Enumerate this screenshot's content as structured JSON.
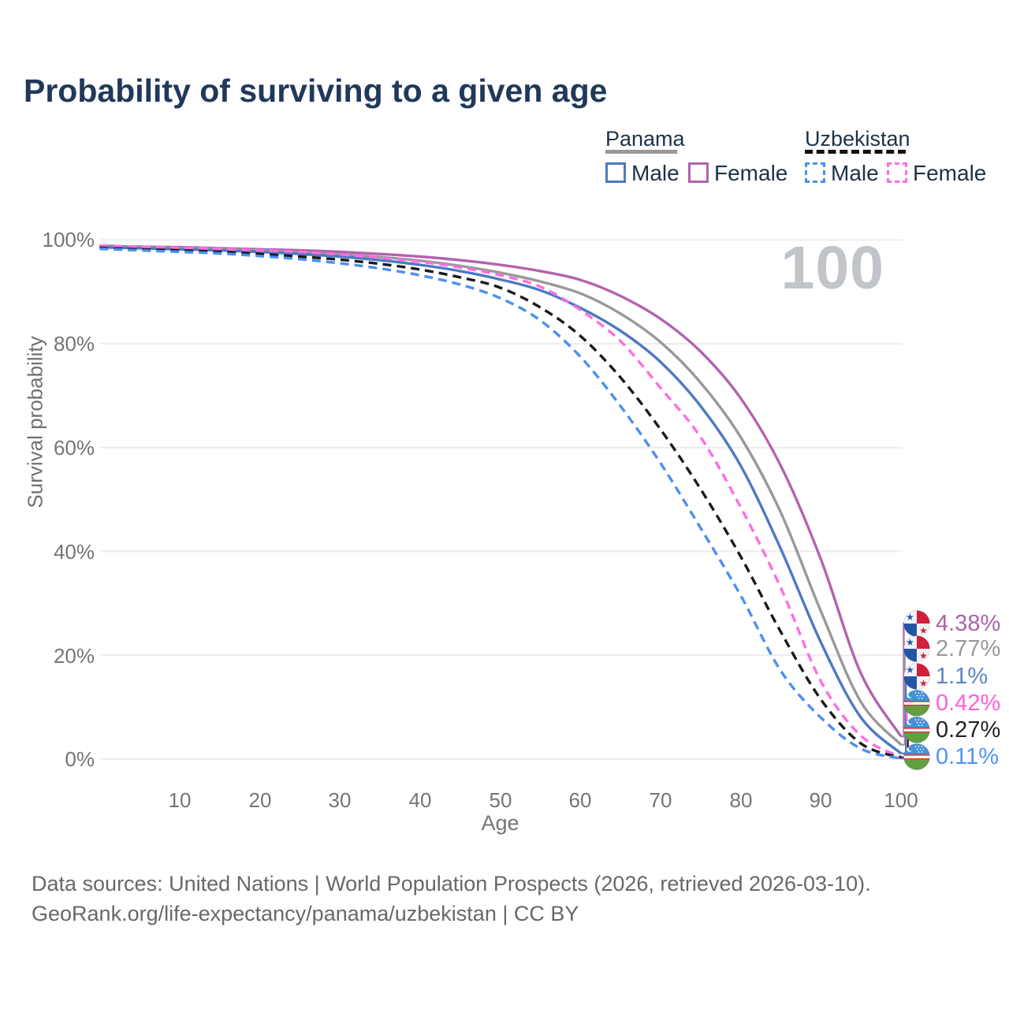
{
  "title": "Probability of surviving to a given age",
  "age_indicator": "100",
  "legend": {
    "groups": [
      {
        "country": "Panama",
        "line_style": "solid",
        "line_color": "#999999",
        "entries": [
          {
            "label": "Male",
            "color": "#4d79c2",
            "style": "solid"
          },
          {
            "label": "Female",
            "color": "#b263ae",
            "style": "solid"
          }
        ]
      },
      {
        "country": "Uzbekistan",
        "line_style": "dashed",
        "line_color": "#111111",
        "entries": [
          {
            "label": "Male",
            "color": "#4a90f0",
            "style": "dashed"
          },
          {
            "label": "Female",
            "color": "#ff6ee0",
            "style": "dashed"
          }
        ]
      }
    ]
  },
  "chart_data": {
    "type": "line",
    "xlabel": "Age",
    "ylabel": "Survival probability",
    "xlim": [
      0,
      100
    ],
    "ylim": [
      0,
      100
    ],
    "grid": "horizontal",
    "x": [
      0,
      5,
      10,
      15,
      20,
      25,
      30,
      35,
      40,
      45,
      50,
      55,
      60,
      65,
      70,
      75,
      80,
      85,
      90,
      95,
      100
    ],
    "xtick_labels": [
      "10",
      "20",
      "30",
      "40",
      "50",
      "60",
      "70",
      "80",
      "90",
      "100"
    ],
    "xticks": [
      10,
      20,
      30,
      40,
      50,
      60,
      70,
      80,
      90,
      100
    ],
    "ytick_labels": [
      "100%",
      "80%",
      "60%",
      "40%",
      "20%",
      "0%"
    ],
    "yticks": [
      0,
      20,
      40,
      60,
      80,
      100
    ],
    "series": [
      {
        "id": "panama-female",
        "name": "Panama Female",
        "country": "Panama",
        "sex": "female",
        "line_style": "solid",
        "color": "#b263ae",
        "end_label": "4.38%",
        "values": [
          98.9,
          98.7,
          98.6,
          98.4,
          98.2,
          98.0,
          97.7,
          97.3,
          96.8,
          96.1,
          95.2,
          94.0,
          92.3,
          89.2,
          84.8,
          78.5,
          69.5,
          56.5,
          38.5,
          16.5,
          4.38
        ]
      },
      {
        "id": "panama-both",
        "name": "Panama Both sexes",
        "country": "Panama",
        "sex": "both",
        "line_style": "solid",
        "color": "#999999",
        "end_label": "2.77%",
        "values": [
          98.8,
          98.6,
          98.4,
          98.2,
          98.0,
          97.6,
          97.2,
          96.7,
          96.0,
          95.0,
          93.7,
          92.0,
          89.7,
          85.8,
          80.3,
          72.5,
          62.0,
          47.5,
          28.5,
          11.0,
          2.77
        ]
      },
      {
        "id": "panama-male",
        "name": "Panama Male",
        "country": "Panama",
        "sex": "male",
        "line_style": "solid",
        "color": "#4d79c2",
        "end_label": "1.1%",
        "values": [
          98.6,
          98.4,
          98.2,
          98.0,
          97.7,
          97.3,
          96.8,
          96.1,
          95.2,
          94.0,
          92.4,
          90.3,
          86.9,
          82.5,
          76.5,
          68.0,
          56.5,
          40.5,
          22.5,
          8.0,
          1.1
        ]
      },
      {
        "id": "uzbekistan-female",
        "name": "Uzbekistan Female",
        "country": "Uzbekistan",
        "sex": "female",
        "line_style": "dashed",
        "color": "#ff6ee0",
        "end_label": "0.42%",
        "values": [
          98.9,
          98.7,
          98.5,
          98.3,
          98.0,
          97.7,
          97.2,
          96.6,
          95.8,
          94.7,
          93.2,
          91.0,
          86.5,
          80.5,
          71.5,
          62.0,
          48.5,
          33.0,
          15.0,
          4.5,
          0.42
        ]
      },
      {
        "id": "uzbekistan-both",
        "name": "Uzbekistan Both sexes",
        "country": "Uzbekistan",
        "sex": "both",
        "line_style": "dashed",
        "color": "#1a1a1a",
        "end_label": "0.27%",
        "values": [
          98.5,
          98.2,
          98.0,
          97.7,
          97.3,
          96.8,
          96.2,
          95.4,
          94.3,
          92.8,
          90.8,
          87.0,
          81.5,
          73.5,
          63.5,
          52.0,
          39.0,
          24.5,
          11.5,
          3.0,
          0.27
        ]
      },
      {
        "id": "uzbekistan-male",
        "name": "Uzbekistan Male",
        "country": "Uzbekistan",
        "sex": "male",
        "line_style": "dashed",
        "color": "#4a90f0",
        "end_label": "0.11%",
        "values": [
          98.3,
          98.0,
          97.7,
          97.4,
          96.9,
          96.3,
          95.5,
          94.5,
          93.2,
          91.4,
          88.8,
          84.5,
          77.5,
          68.0,
          57.0,
          44.5,
          31.5,
          17.0,
          8.0,
          2.0,
          0.11
        ]
      }
    ]
  },
  "end_labels": [
    {
      "value": "4.38%",
      "color": "#a964ab",
      "flag": "panama"
    },
    {
      "value": "2.77%",
      "color": "#999999",
      "flag": "panama"
    },
    {
      "value": "1.1%",
      "color": "#5b84c4",
      "flag": "panama"
    },
    {
      "value": "0.42%",
      "color": "#ff5fd9",
      "flag": "uzbekistan"
    },
    {
      "value": "0.27%",
      "color": "#222222",
      "flag": "uzbekistan"
    },
    {
      "value": "0.11%",
      "color": "#4d94f5",
      "flag": "uzbekistan"
    }
  ],
  "footer": {
    "line1": "Data sources: United Nations | World Population Prospects (2026, retrieved 2026-03-10).",
    "line2": "GeoRank.org/life-expectancy/panama/uzbekistan | CC BY"
  }
}
